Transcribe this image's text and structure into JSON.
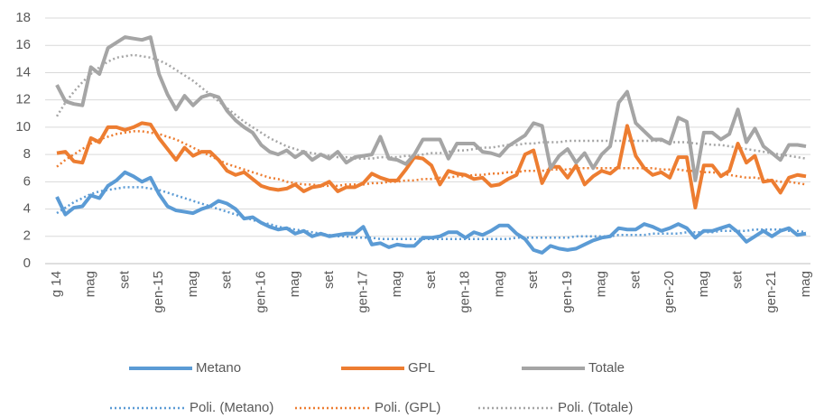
{
  "chart_data": {
    "type": "line",
    "categories": [
      "g 14",
      null,
      null,
      null,
      "mag",
      null,
      null,
      null,
      "set",
      null,
      null,
      null,
      "gen-15",
      null,
      null,
      null,
      "mag",
      null,
      null,
      null,
      "set",
      null,
      null,
      null,
      "gen-16",
      null,
      null,
      null,
      "mag",
      null,
      null,
      null,
      "set",
      null,
      null,
      null,
      "gen-17",
      null,
      null,
      null,
      "mag",
      null,
      null,
      null,
      "set",
      null,
      null,
      null,
      "gen-18",
      null,
      null,
      null,
      "mag",
      null,
      null,
      null,
      "set",
      null,
      null,
      null,
      "gen-19",
      null,
      null,
      null,
      "mag",
      null,
      null,
      null,
      "set",
      null,
      null,
      null,
      "gen-20",
      null,
      null,
      null,
      "mag",
      null,
      null,
      null,
      "set",
      null,
      null,
      null,
      "gen-21",
      null,
      null,
      null,
      "mag"
    ],
    "series": [
      {
        "name": "Metano",
        "color": "#5b9bd5",
        "dash": "solid",
        "values": [
          4.9,
          3.6,
          4.1,
          4.2,
          5.0,
          4.8,
          5.7,
          6.1,
          6.7,
          6.4,
          6.0,
          6.3,
          5.1,
          4.2,
          3.9,
          3.8,
          3.7,
          4.0,
          4.2,
          4.6,
          4.4,
          4.0,
          3.3,
          3.4,
          3.0,
          2.7,
          2.5,
          2.6,
          2.2,
          2.4,
          2.0,
          2.2,
          2.0,
          2.1,
          2.2,
          2.2,
          2.7,
          1.4,
          1.5,
          1.2,
          1.4,
          1.3,
          1.3,
          1.9,
          1.9,
          2.0,
          2.3,
          2.3,
          1.9,
          2.3,
          2.1,
          2.4,
          2.8,
          2.8,
          2.2,
          1.8,
          1.0,
          0.8,
          1.3,
          1.1,
          1.0,
          1.1,
          1.4,
          1.7,
          1.9,
          2.0,
          2.6,
          2.5,
          2.5,
          2.9,
          2.7,
          2.4,
          2.6,
          2.9,
          2.6,
          1.9,
          2.4,
          2.4,
          2.6,
          2.8,
          2.3,
          1.6,
          2.0,
          2.4,
          2.0,
          2.4,
          2.6,
          2.1,
          2.2
        ]
      },
      {
        "name": "GPL",
        "color": "#ed7d31",
        "dash": "solid",
        "values": [
          8.1,
          8.2,
          7.5,
          7.4,
          9.2,
          8.9,
          10.0,
          10.0,
          9.8,
          10.0,
          10.3,
          10.2,
          9.2,
          8.4,
          7.6,
          8.5,
          7.9,
          8.2,
          8.2,
          7.6,
          6.8,
          6.5,
          6.7,
          6.2,
          5.7,
          5.5,
          5.4,
          5.5,
          5.8,
          5.3,
          5.6,
          5.7,
          6.0,
          5.3,
          5.6,
          5.6,
          5.9,
          6.6,
          6.3,
          6.1,
          6.1,
          6.9,
          7.8,
          7.7,
          7.2,
          5.8,
          6.8,
          6.6,
          6.5,
          6.2,
          6.3,
          5.7,
          5.8,
          6.2,
          6.5,
          8.0,
          8.3,
          5.9,
          7.1,
          7.1,
          6.3,
          7.2,
          5.8,
          6.4,
          6.8,
          6.6,
          7.1,
          10.1,
          7.9,
          7.0,
          6.5,
          6.7,
          6.3,
          7.8,
          7.8,
          4.1,
          7.2,
          7.2,
          6.4,
          6.8,
          8.8,
          7.4,
          7.9,
          6.0,
          6.1,
          5.2,
          6.3,
          6.5,
          6.4
        ]
      },
      {
        "name": "Totale",
        "color": "#a5a5a5",
        "dash": "solid",
        "values": [
          13.1,
          11.9,
          11.7,
          11.6,
          14.4,
          13.9,
          15.8,
          16.2,
          16.6,
          16.5,
          16.4,
          16.6,
          13.9,
          12.4,
          11.3,
          12.3,
          11.6,
          12.2,
          12.4,
          12.2,
          11.2,
          10.5,
          10.0,
          9.6,
          8.7,
          8.2,
          8.0,
          8.3,
          7.8,
          8.2,
          7.6,
          8.0,
          7.7,
          8.2,
          7.4,
          7.8,
          7.9,
          8.0,
          9.3,
          7.7,
          7.6,
          7.3,
          8.0,
          9.1,
          9.1,
          9.1,
          7.7,
          8.8,
          8.8,
          8.8,
          8.2,
          8.1,
          7.9,
          8.6,
          9.0,
          9.4,
          10.3,
          10.1,
          7.0,
          7.9,
          8.4,
          7.4,
          8.1,
          7.0,
          8.0,
          8.6,
          11.8,
          12.6,
          10.3,
          9.7,
          9.1,
          9.1,
          8.8,
          10.7,
          10.4,
          6.1,
          9.6,
          9.6,
          9.1,
          9.5,
          11.3,
          8.9,
          9.9,
          8.6,
          8.1,
          7.6,
          8.7,
          8.7,
          8.6
        ]
      },
      {
        "name": "Poli. (Metano)",
        "color": "#5b9bd5",
        "dash": "dotted",
        "values": [
          3.7,
          4.1,
          4.5,
          4.8,
          5.1,
          5.3,
          5.4,
          5.5,
          5.6,
          5.6,
          5.6,
          5.5,
          5.4,
          5.2,
          5.0,
          4.8,
          4.6,
          4.4,
          4.2,
          4.0,
          3.8,
          3.6,
          3.4,
          3.2,
          3.0,
          2.9,
          2.7,
          2.6,
          2.5,
          2.4,
          2.3,
          2.2,
          2.1,
          2.0,
          2.0,
          1.9,
          1.9,
          1.9,
          1.8,
          1.8,
          1.8,
          1.8,
          1.8,
          1.8,
          1.8,
          1.8,
          1.8,
          1.8,
          1.8,
          1.8,
          1.8,
          1.8,
          1.8,
          1.8,
          1.9,
          1.9,
          1.9,
          1.9,
          1.9,
          1.9,
          1.9,
          2.0,
          2.0,
          2.0,
          2.0,
          2.0,
          2.1,
          2.1,
          2.1,
          2.1,
          2.2,
          2.2,
          2.2,
          2.2,
          2.3,
          2.3,
          2.3,
          2.3,
          2.4,
          2.4,
          2.4,
          2.4,
          2.5,
          2.5,
          2.5,
          2.5,
          2.4,
          2.4,
          2.3
        ]
      },
      {
        "name": "Poli. (GPL)",
        "color": "#ed7d31",
        "dash": "dotted",
        "values": [
          7.1,
          7.6,
          8.0,
          8.4,
          8.8,
          9.1,
          9.3,
          9.5,
          9.6,
          9.7,
          9.7,
          9.6,
          9.5,
          9.3,
          9.1,
          8.8,
          8.5,
          8.2,
          7.9,
          7.6,
          7.3,
          7.1,
          6.9,
          6.7,
          6.5,
          6.3,
          6.2,
          6.0,
          5.9,
          5.8,
          5.8,
          5.7,
          5.7,
          5.7,
          5.8,
          5.8,
          5.8,
          5.9,
          5.9,
          6.0,
          6.0,
          6.1,
          6.1,
          6.2,
          6.2,
          6.3,
          6.3,
          6.4,
          6.4,
          6.5,
          6.5,
          6.6,
          6.6,
          6.7,
          6.7,
          6.8,
          6.8,
          6.8,
          6.9,
          6.9,
          6.9,
          7.0,
          7.0,
          7.0,
          7.0,
          7.0,
          7.0,
          7.0,
          7.0,
          7.0,
          7.0,
          6.9,
          6.9,
          6.9,
          6.8,
          6.8,
          6.7,
          6.7,
          6.6,
          6.5,
          6.4,
          6.3,
          6.3,
          6.2,
          6.1,
          6.0,
          6.0,
          5.9,
          5.8
        ]
      },
      {
        "name": "Poli. (Totale)",
        "color": "#a5a5a5",
        "dash": "dotted",
        "values": [
          10.8,
          11.8,
          12.6,
          13.3,
          13.9,
          14.4,
          14.8,
          15.1,
          15.2,
          15.3,
          15.2,
          15.1,
          14.9,
          14.6,
          14.2,
          13.8,
          13.4,
          12.9,
          12.4,
          11.9,
          11.4,
          10.9,
          10.4,
          10.0,
          9.6,
          9.2,
          8.9,
          8.6,
          8.4,
          8.2,
          8.1,
          8.0,
          7.9,
          7.8,
          7.8,
          7.7,
          7.7,
          7.7,
          7.8,
          7.8,
          7.8,
          7.9,
          7.9,
          8.0,
          8.1,
          8.1,
          8.2,
          8.3,
          8.3,
          8.4,
          8.5,
          8.5,
          8.6,
          8.7,
          8.7,
          8.8,
          8.8,
          8.9,
          8.9,
          8.9,
          9.0,
          9.0,
          9.0,
          9.0,
          9.0,
          9.0,
          9.0,
          9.0,
          9.0,
          9.0,
          9.0,
          9.0,
          8.9,
          8.9,
          8.9,
          8.8,
          8.8,
          8.7,
          8.7,
          8.6,
          8.5,
          8.4,
          8.3,
          8.2,
          8.1,
          8.0,
          7.9,
          7.8,
          7.7
        ]
      }
    ],
    "ylim": [
      0,
      18
    ],
    "yticks": [
      0,
      2,
      4,
      6,
      8,
      10,
      12,
      14,
      16,
      18
    ],
    "grid": true,
    "legend": "bottom"
  }
}
